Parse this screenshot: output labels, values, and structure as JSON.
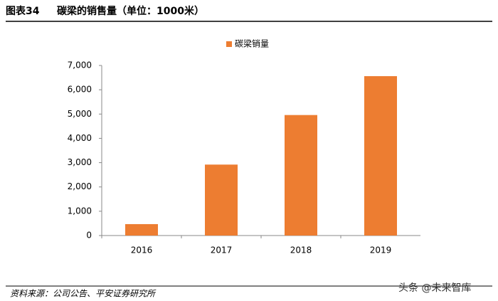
{
  "figure_label": "图表34",
  "chart_data": {
    "type": "bar",
    "title": "碳梁的销售量（单位：1000米）",
    "categories": [
      "2016",
      "2017",
      "2018",
      "2019"
    ],
    "series": [
      {
        "name": "碳梁销量",
        "color": "#ed7d31",
        "values": [
          470,
          2920,
          4960,
          6560
        ]
      }
    ],
    "ylim": [
      0,
      7000
    ],
    "yticks": [
      0,
      {
        "value": 1000,
        "label": "1,000"
      },
      {
        "value": 2000,
        "label": "2,000"
      },
      {
        "value": 3000,
        "label": "3,000"
      },
      {
        "value": 4000,
        "label": "4,000"
      },
      {
        "value": 5000,
        "label": "5,000"
      },
      {
        "value": 6000,
        "label": "6,000"
      },
      {
        "value": 7000,
        "label": "7,000"
      }
    ],
    "grid": false,
    "legend": "top"
  },
  "source": "资料来源：公司公告、平安证券研究所",
  "watermark": "头条 @未来智库"
}
